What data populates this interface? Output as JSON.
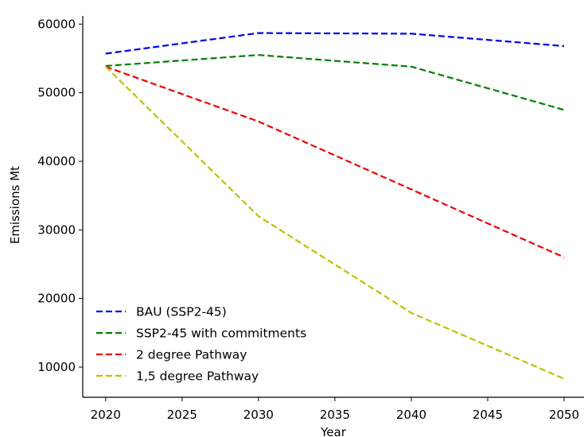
{
  "chart_data": {
    "type": "line",
    "xlabel": "Year",
    "ylabel": "Emissions Mt",
    "xlim": [
      2018.5,
      2051.3
    ],
    "ylim": [
      5600,
      61200
    ],
    "xticks": [
      2020,
      2025,
      2030,
      2035,
      2040,
      2045,
      2050
    ],
    "yticks": [
      10000,
      20000,
      30000,
      40000,
      50000,
      60000
    ],
    "grid": false,
    "legend_position": "lower-left",
    "line_style": "dashed",
    "series": [
      {
        "name": "BAU (SSP2-45)",
        "color": "#0000ee",
        "x": [
          2020,
          2030,
          2040,
          2050
        ],
        "y": [
          55700,
          58700,
          58600,
          56800
        ]
      },
      {
        "name": "SSP2-45 with commitments",
        "color": "#008000",
        "x": [
          2020,
          2030,
          2040,
          2050
        ],
        "y": [
          53900,
          55500,
          53800,
          47500
        ]
      },
      {
        "name": "2 degree Pathway",
        "color": "#ee0000",
        "x": [
          2020,
          2030,
          2040,
          2050
        ],
        "y": [
          53800,
          45800,
          35900,
          26000
        ]
      },
      {
        "name": "1,5 degree Pathway",
        "color": "#c0c000",
        "x": [
          2020,
          2030,
          2040,
          2050
        ],
        "y": [
          53800,
          32000,
          17900,
          8300
        ]
      }
    ]
  }
}
